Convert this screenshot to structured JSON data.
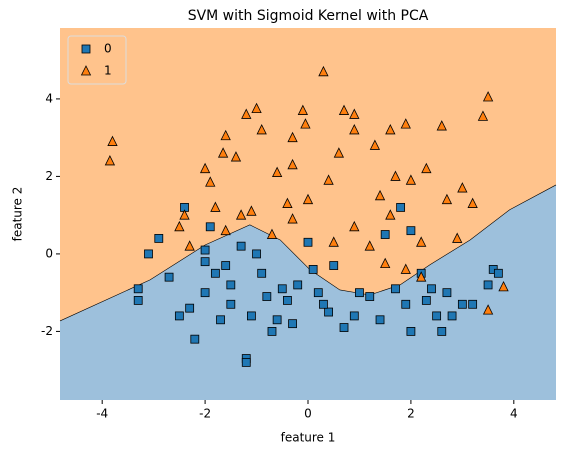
{
  "chart_data": {
    "type": "scatter",
    "title": "SVM with Sigmoid Kernel with PCA",
    "x_label": "feature 1",
    "y_label": "feature 2",
    "xlim": [
      -4.82,
      4.82
    ],
    "ylim": [
      -3.77,
      5.83
    ],
    "xticks": [
      -4,
      -2,
      0,
      2,
      4
    ],
    "yticks": [
      -2,
      0,
      2,
      4
    ],
    "legend": "upper left",
    "grid": false,
    "regions": {
      "above": "#ffc38c",
      "below": "#9dc0dc"
    },
    "decision_boundary": {
      "x": [
        -4.82,
        -3.07,
        -2.0,
        -1.13,
        -0.54,
        0.04,
        0.62,
        1.2,
        1.79,
        2.37,
        3.15,
        3.92,
        4.82
      ],
      "y": [
        -1.73,
        -0.67,
        0.23,
        0.75,
        0.36,
        -0.41,
        -0.93,
        -1.06,
        -0.8,
        -0.28,
        0.36,
        1.14,
        1.78
      ]
    },
    "series": [
      {
        "name": "0",
        "color": "#1f77b4",
        "marker": "square",
        "x": [
          -3.3,
          -3.3,
          -3.1,
          -2.9,
          -2.4,
          -2.5,
          -2.2,
          -2.0,
          -1.9,
          -1.5,
          -1.2,
          -1.2,
          -1.0,
          -0.6,
          -0.7,
          -0.4,
          0.1,
          0.2,
          0.4,
          0.5,
          0.9,
          1.0,
          1.4,
          1.8,
          1.9,
          2.0,
          2.4,
          2.5,
          2.6,
          2.7,
          3.0,
          3.2,
          3.5,
          3.6,
          3.7,
          -2.0,
          -1.8,
          -1.5,
          -1.3,
          -0.9,
          -0.5,
          0.0,
          -0.3,
          -1.7,
          -2.3,
          -0.8,
          0.7,
          1.2,
          2.2,
          1.5,
          2.0,
          -2.7,
          -1.1,
          2.8,
          -2.0,
          -1.6,
          1.7,
          0.3,
          -0.2,
          2.3
        ],
        "values": [
          -0.9,
          -1.2,
          0.0,
          0.4,
          1.2,
          -1.6,
          -2.2,
          -1.0,
          0.7,
          -1.3,
          -2.7,
          -2.8,
          0.0,
          -1.7,
          -2.0,
          -1.2,
          -0.4,
          -1.0,
          -1.5,
          -0.3,
          -1.6,
          -1.0,
          -1.7,
          1.2,
          -1.3,
          -2.0,
          -0.9,
          -1.6,
          -2.0,
          -1.0,
          -1.3,
          -1.3,
          -0.8,
          -0.4,
          -0.5,
          -0.2,
          -0.5,
          -0.8,
          0.2,
          -0.5,
          -0.9,
          0.3,
          -1.8,
          -1.7,
          -1.4,
          -1.1,
          -1.9,
          -1.1,
          -0.5,
          0.5,
          0.6,
          -0.6,
          -1.6,
          -1.6,
          0.1,
          -0.3,
          -0.9,
          -1.3,
          -0.8,
          -1.2
        ]
      },
      {
        "name": "1",
        "color": "#ff7f0e",
        "marker": "triangle",
        "x": [
          -3.8,
          -3.85,
          -1.0,
          -1.2,
          -1.6,
          -1.65,
          -1.9,
          -1.4,
          -0.1,
          0.3,
          0.7,
          0.9,
          1.6,
          1.9,
          2.6,
          3.4,
          3.5,
          0.6,
          -0.3,
          -0.3,
          0.4,
          -0.6,
          -2.0,
          1.3,
          2.3,
          2.0,
          3.0,
          3.2,
          2.7,
          1.4,
          -0.4,
          0.0,
          -0.7,
          -1.3,
          -2.5,
          -2.4,
          -1.6,
          0.9,
          1.6,
          2.2,
          2.9,
          3.8,
          3.5,
          1.5,
          1.9,
          2.2,
          -0.3,
          -1.8,
          0.5,
          1.2,
          -0.9,
          -0.05,
          0.9,
          -2.3,
          -1.1,
          1.7
        ],
        "values": [
          2.9,
          2.4,
          3.75,
          3.6,
          3.05,
          2.6,
          1.85,
          2.5,
          3.7,
          4.7,
          3.7,
          3.6,
          3.2,
          3.35,
          3.3,
          3.55,
          4.05,
          2.6,
          3.0,
          2.3,
          1.9,
          2.1,
          2.2,
          2.8,
          2.2,
          1.9,
          1.7,
          1.3,
          1.4,
          1.5,
          1.3,
          1.4,
          0.5,
          1.0,
          0.7,
          1.0,
          0.6,
          0.7,
          1.0,
          0.3,
          0.4,
          -0.85,
          -1.45,
          -0.25,
          -0.4,
          -0.6,
          0.9,
          1.2,
          0.3,
          0.2,
          3.2,
          3.35,
          3.2,
          0.2,
          1.1,
          2.0
        ]
      }
    ]
  }
}
